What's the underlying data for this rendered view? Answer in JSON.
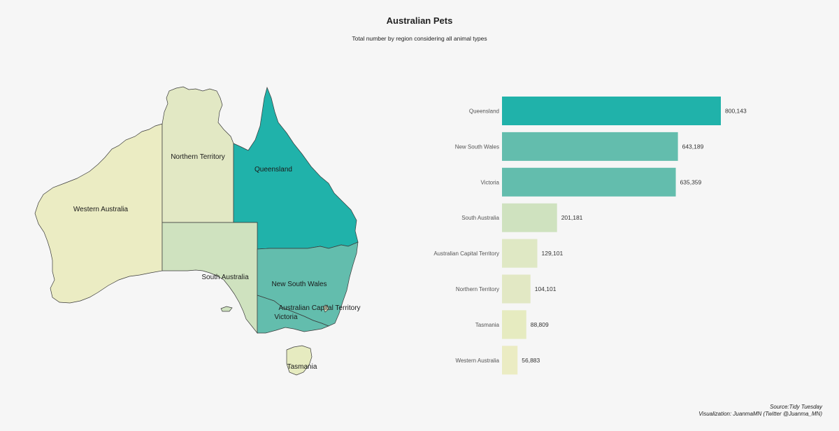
{
  "header": {
    "title": "Australian Pets",
    "subtitle": "Total number by region considering all animal types"
  },
  "colors": {
    "Queensland": "#20b2aa",
    "New South Wales": "#63bdad",
    "Victoria": "#63bdad",
    "South Australia": "#cfe2bf",
    "Australian Capital Territory": "#dfe8c4",
    "Northern Territory": "#e2e8c4",
    "Tasmania": "#e6ebc0",
    "Western Australia": "#ebecc3"
  },
  "map_labels": [
    "Western Australia",
    "Northern Territory",
    "Queensland",
    "South Australia",
    "New South Wales",
    "Australian Capital Territory",
    "Victoria",
    "Tasmania"
  ],
  "chart_data": {
    "type": "bar",
    "orientation": "horizontal",
    "categories": [
      "Queensland",
      "New South Wales",
      "Victoria",
      "South Australia",
      "Australian Capital Territory",
      "Northern Territory",
      "Tasmania",
      "Western Australia"
    ],
    "values": [
      800143,
      643189,
      635359,
      201181,
      129101,
      104101,
      88809,
      56883
    ],
    "value_labels": [
      "800,143",
      "643,189",
      "635,359",
      "201,181",
      "129,101",
      "104,101",
      "88,809",
      "56,883"
    ],
    "title": "Australian Pets",
    "subtitle": "Total number by region considering all animal types",
    "xlabel": "",
    "ylabel": "",
    "grid": false
  },
  "caption": {
    "line1": "Source:Tidy Tuesday",
    "line2": "Visualization: JuanmaMN (Twitter @Juanma_MN)"
  }
}
